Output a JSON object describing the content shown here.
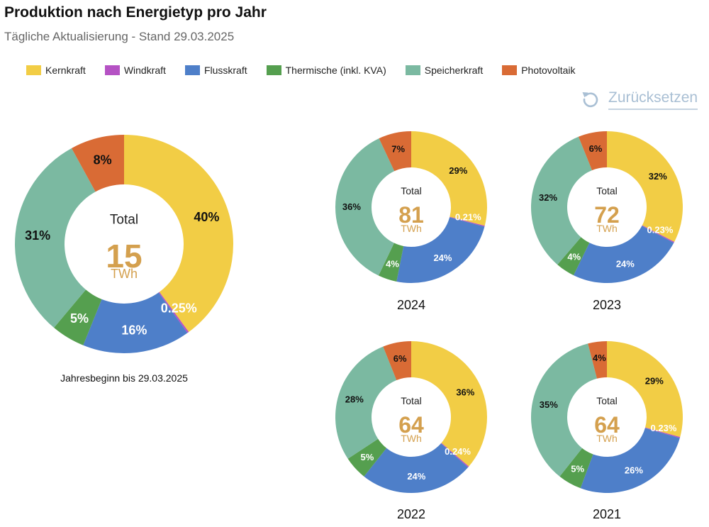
{
  "header": {
    "title": "Produktion nach Energietyp pro Jahr",
    "subtitle": "Tägliche Aktualisierung - Stand 29.03.2025"
  },
  "legend": [
    {
      "label": "Kernkraft",
      "color": "#f2cd45"
    },
    {
      "label": "Windkraft",
      "color": "#b552c4"
    },
    {
      "label": "Flusskraft",
      "color": "#4e7fc9"
    },
    {
      "label": "Thermische (inkl. KVA)",
      "color": "#559f4f"
    },
    {
      "label": "Speicherkraft",
      "color": "#7bb9a1"
    },
    {
      "label": "Photovoltaik",
      "color": "#d96b35"
    }
  ],
  "reset": {
    "label": "Zurücksetzen"
  },
  "center_label": "Total",
  "center_color": "#d4a04e",
  "chart_data": [
    {
      "type": "pie",
      "id": "current",
      "caption": "Jahresbeginn bis 29.03.2025",
      "total": "15",
      "unit": "TWh",
      "slices": [
        {
          "category": "Kernkraft",
          "value": 40,
          "label": "40%"
        },
        {
          "category": "Windkraft",
          "value": 0.25,
          "label": "0.25%"
        },
        {
          "category": "Flusskraft",
          "value": 16,
          "label": "16%"
        },
        {
          "category": "Thermische (inkl. KVA)",
          "value": 5,
          "label": "5%"
        },
        {
          "category": "Speicherkraft",
          "value": 31,
          "label": "31%"
        },
        {
          "category": "Photovoltaik",
          "value": 8,
          "label": "8%"
        }
      ]
    },
    {
      "type": "pie",
      "id": "y2024",
      "caption": "2024",
      "total": "81",
      "unit": "TWh",
      "slices": [
        {
          "category": "Kernkraft",
          "value": 29,
          "label": "29%"
        },
        {
          "category": "Windkraft",
          "value": 0.21,
          "label": "0.21%"
        },
        {
          "category": "Flusskraft",
          "value": 24,
          "label": "24%"
        },
        {
          "category": "Thermische (inkl. KVA)",
          "value": 4,
          "label": "4%"
        },
        {
          "category": "Speicherkraft",
          "value": 36,
          "label": "36%"
        },
        {
          "category": "Photovoltaik",
          "value": 7,
          "label": "7%"
        }
      ]
    },
    {
      "type": "pie",
      "id": "y2023",
      "caption": "2023",
      "total": "72",
      "unit": "TWh",
      "slices": [
        {
          "category": "Kernkraft",
          "value": 32,
          "label": "32%"
        },
        {
          "category": "Windkraft",
          "value": 0.23,
          "label": "0.23%"
        },
        {
          "category": "Flusskraft",
          "value": 24,
          "label": "24%"
        },
        {
          "category": "Thermische (inkl. KVA)",
          "value": 4,
          "label": "4%"
        },
        {
          "category": "Speicherkraft",
          "value": 32,
          "label": "32%"
        },
        {
          "category": "Photovoltaik",
          "value": 6,
          "label": "6%"
        }
      ]
    },
    {
      "type": "pie",
      "id": "y2022",
      "caption": "2022",
      "total": "64",
      "unit": "TWh",
      "slices": [
        {
          "category": "Kernkraft",
          "value": 36,
          "label": "36%"
        },
        {
          "category": "Windkraft",
          "value": 0.24,
          "label": "0.24%"
        },
        {
          "category": "Flusskraft",
          "value": 24,
          "label": "24%"
        },
        {
          "category": "Thermische (inkl. KVA)",
          "value": 5,
          "label": "5%"
        },
        {
          "category": "Speicherkraft",
          "value": 28,
          "label": "28%"
        },
        {
          "category": "Photovoltaik",
          "value": 6,
          "label": "6%"
        }
      ]
    },
    {
      "type": "pie",
      "id": "y2021",
      "caption": "2021",
      "total": "64",
      "unit": "TWh",
      "slices": [
        {
          "category": "Kernkraft",
          "value": 29,
          "label": "29%"
        },
        {
          "category": "Windkraft",
          "value": 0.23,
          "label": "0.23%"
        },
        {
          "category": "Flusskraft",
          "value": 26,
          "label": "26%"
        },
        {
          "category": "Thermische (inkl. KVA)",
          "value": 5,
          "label": "5%"
        },
        {
          "category": "Speicherkraft",
          "value": 35,
          "label": "35%"
        },
        {
          "category": "Photovoltaik",
          "value": 4,
          "label": "4%"
        }
      ]
    }
  ]
}
